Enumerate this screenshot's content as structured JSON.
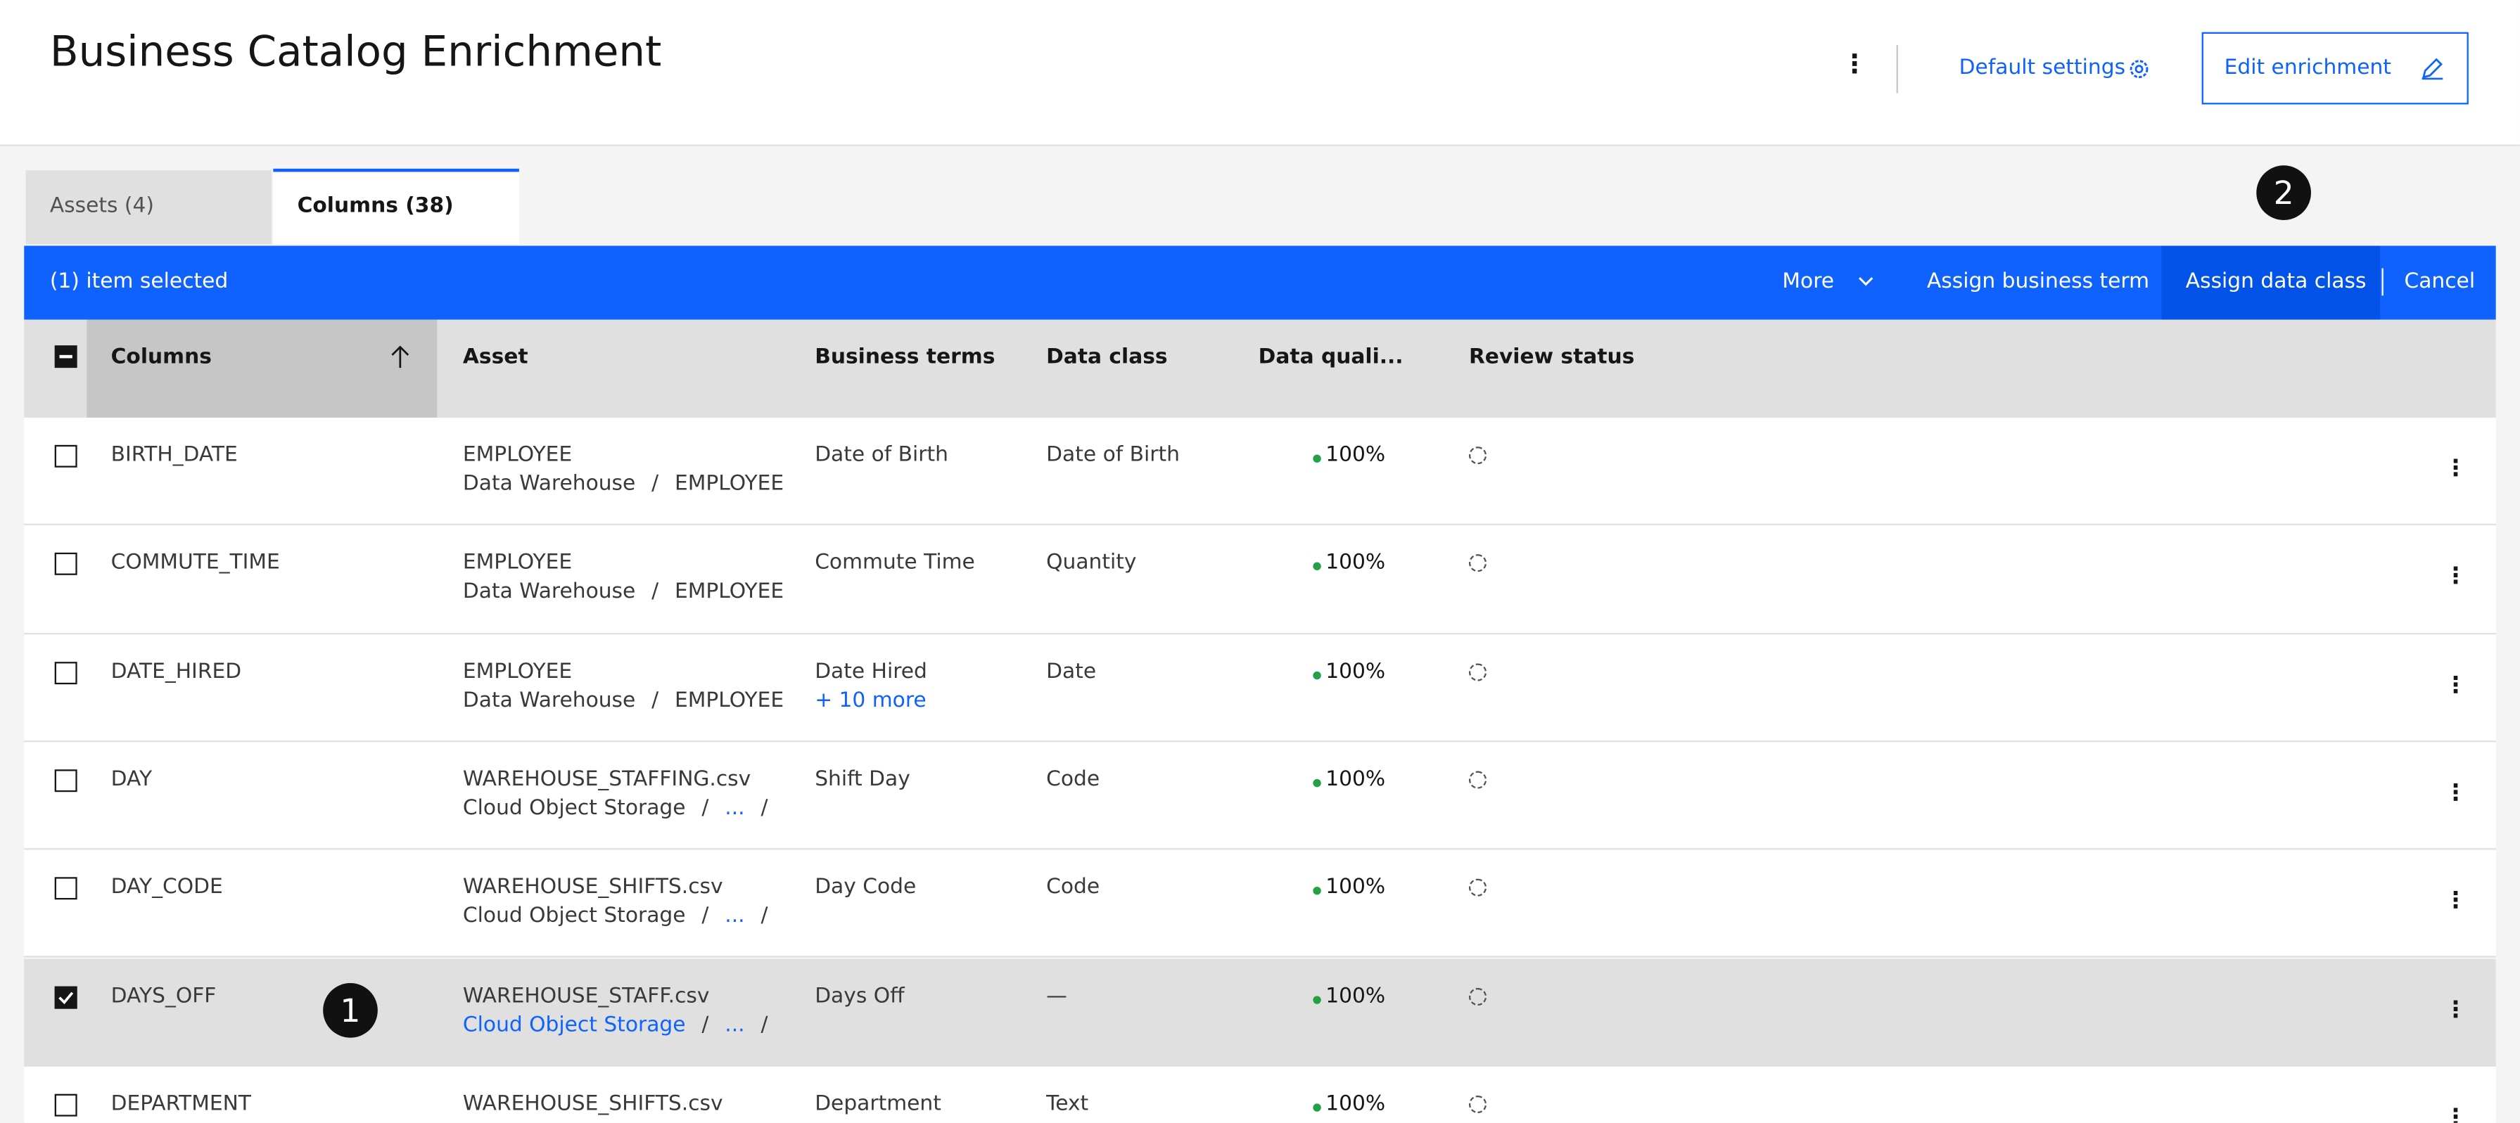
{
  "header": {
    "title": "Business Catalog Enrichment",
    "default_settings": "Default settings",
    "edit_button": "Edit enrichment"
  },
  "tabs": [
    "Assets (4)",
    "Columns (38)"
  ],
  "toolbar": {
    "selection": "(1) item selected",
    "actions": [
      "More",
      "Assign business term",
      "Assign data class",
      "Cancel"
    ]
  },
  "table": {
    "headers": [
      "Columns",
      "Asset",
      "Business terms",
      "Data class",
      "Data quali...",
      "Review status"
    ],
    "rows": [
      {
        "checked": false,
        "column": "BIRTH_DATE",
        "asset": "EMPLOYEE",
        "path": [
          "Data Warehouse",
          "/",
          "EMPLOYEE"
        ],
        "term": "Date of Birth",
        "more": null,
        "data_class": "Date of Birth",
        "quality": "100%"
      },
      {
        "checked": false,
        "column": "COMMUTE_TIME",
        "asset": "EMPLOYEE",
        "path": [
          "Data Warehouse",
          "/",
          "EMPLOYEE"
        ],
        "term": "Commute Time",
        "more": null,
        "data_class": "Quantity",
        "quality": "100%"
      },
      {
        "checked": false,
        "column": "DATE_HIRED",
        "asset": "EMPLOYEE",
        "path": [
          "Data Warehouse",
          "/",
          "EMPLOYEE"
        ],
        "term": "Date Hired",
        "more": "+ 10 more",
        "data_class": "Date",
        "quality": "100%"
      },
      {
        "checked": false,
        "column": "DAY",
        "asset": "WAREHOUSE_STAFFING.csv",
        "path": [
          "Cloud Object Storage",
          "/",
          "...",
          "/"
        ],
        "term": "Shift Day",
        "more": null,
        "data_class": "Code",
        "quality": "100%"
      },
      {
        "checked": false,
        "column": "DAY_CODE",
        "asset": "WAREHOUSE_SHIFTS.csv",
        "path": [
          "Cloud Object Storage",
          "/",
          "...",
          "/"
        ],
        "term": "Day Code",
        "more": null,
        "data_class": "Code",
        "quality": "100%"
      },
      {
        "checked": true,
        "column": "DAYS_OFF",
        "asset": "WAREHOUSE_STAFF.csv",
        "path": [
          "Cloud Object Storage",
          "/",
          "...",
          "/"
        ],
        "term": "Days Off",
        "more": null,
        "data_class": "—",
        "quality": "100%"
      },
      {
        "checked": false,
        "column": "DEPARTMENT",
        "asset": "WAREHOUSE_SHIFTS.csv",
        "path": [],
        "term": "Department",
        "more": null,
        "data_class": "Text",
        "quality": "100%"
      }
    ]
  },
  "callouts": [
    "1",
    "2"
  ]
}
